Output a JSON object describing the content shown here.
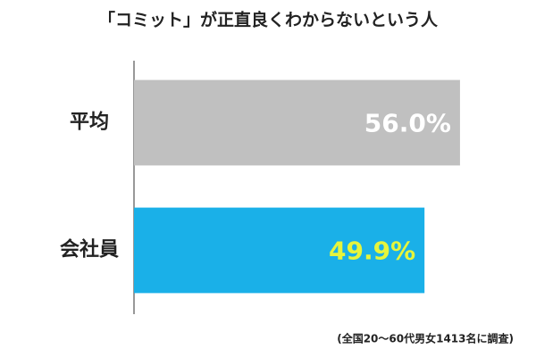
{
  "chart_data": {
    "type": "hbar",
    "title": "「コミット」が正直良くわからないという人",
    "categories": [
      "平均",
      "会社員"
    ],
    "values": [
      56.0,
      49.9
    ],
    "value_labels": [
      "56.0%",
      "49.9%"
    ],
    "colors": [
      "#c0c0c0",
      "#1ab0e8"
    ],
    "value_label_colors": [
      "#ffffff",
      "#e6f53c"
    ],
    "xlim": [
      0,
      60
    ],
    "note": "(全国20～60代男女1413名に調査)"
  }
}
